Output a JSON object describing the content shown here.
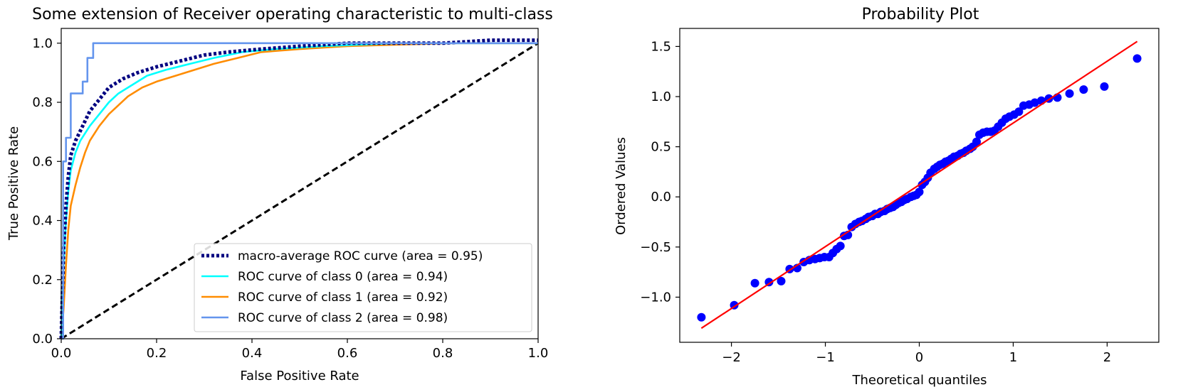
{
  "chart_data": [
    {
      "type": "line",
      "title": "Some extension of Receiver operating characteristic to multi-class",
      "xlabel": "False Positive Rate",
      "ylabel": "True Positive Rate",
      "xlim": [
        0.0,
        1.0
      ],
      "ylim": [
        0.0,
        1.05
      ],
      "xticks": [
        "0.0",
        "0.2",
        "0.4",
        "0.6",
        "0.8",
        "1.0"
      ],
      "yticks": [
        "0.0",
        "0.2",
        "0.4",
        "0.6",
        "0.8",
        "1.0"
      ],
      "grid": false,
      "legend_position": "lower-right",
      "series": [
        {
          "name": "macro-average ROC curve (area = 0.95)",
          "color": "#000080",
          "style": "dotted",
          "points": [
            [
              0,
              0
            ],
            [
              0.005,
              0.3
            ],
            [
              0.01,
              0.45
            ],
            [
              0.015,
              0.55
            ],
            [
              0.02,
              0.62
            ],
            [
              0.03,
              0.67
            ],
            [
              0.045,
              0.72
            ],
            [
              0.06,
              0.77
            ],
            [
              0.08,
              0.81
            ],
            [
              0.1,
              0.85
            ],
            [
              0.13,
              0.88
            ],
            [
              0.16,
              0.9
            ],
            [
              0.2,
              0.92
            ],
            [
              0.25,
              0.94
            ],
            [
              0.3,
              0.96
            ],
            [
              0.35,
              0.97
            ],
            [
              0.42,
              0.98
            ],
            [
              0.5,
              0.99
            ],
            [
              0.6,
              1.0
            ],
            [
              0.7,
              1.0
            ],
            [
              0.8,
              1.0
            ],
            [
              0.9,
              1.01
            ],
            [
              1.0,
              1.01
            ]
          ]
        },
        {
          "name": "ROC curve of class 0 (area = 0.94)",
          "color": "#00ffff",
          "style": "solid",
          "points": [
            [
              0,
              0
            ],
            [
              0.005,
              0.25
            ],
            [
              0.01,
              0.4
            ],
            [
              0.015,
              0.5
            ],
            [
              0.02,
              0.57
            ],
            [
              0.03,
              0.63
            ],
            [
              0.04,
              0.67
            ],
            [
              0.06,
              0.72
            ],
            [
              0.08,
              0.76
            ],
            [
              0.1,
              0.8
            ],
            [
              0.12,
              0.83
            ],
            [
              0.15,
              0.86
            ],
            [
              0.18,
              0.89
            ],
            [
              0.22,
              0.91
            ],
            [
              0.27,
              0.93
            ],
            [
              0.32,
              0.95
            ],
            [
              0.38,
              0.97
            ],
            [
              0.45,
              0.98
            ],
            [
              0.55,
              0.99
            ],
            [
              0.7,
              1.0
            ],
            [
              1.0,
              1.0
            ]
          ]
        },
        {
          "name": "ROC curve of class 1 (area = 0.92)",
          "color": "#ff8c00",
          "style": "solid",
          "points": [
            [
              0,
              0
            ],
            [
              0.005,
              0.1
            ],
            [
              0.01,
              0.25
            ],
            [
              0.015,
              0.37
            ],
            [
              0.02,
              0.45
            ],
            [
              0.03,
              0.52
            ],
            [
              0.04,
              0.58
            ],
            [
              0.05,
              0.63
            ],
            [
              0.06,
              0.67
            ],
            [
              0.08,
              0.72
            ],
            [
              0.1,
              0.76
            ],
            [
              0.12,
              0.79
            ],
            [
              0.14,
              0.82
            ],
            [
              0.17,
              0.85
            ],
            [
              0.2,
              0.87
            ],
            [
              0.24,
              0.89
            ],
            [
              0.28,
              0.91
            ],
            [
              0.32,
              0.93
            ],
            [
              0.37,
              0.95
            ],
            [
              0.42,
              0.97
            ],
            [
              0.5,
              0.98
            ],
            [
              0.6,
              0.99
            ],
            [
              0.7,
              0.995
            ],
            [
              0.82,
              1.0
            ],
            [
              1.0,
              1.0
            ]
          ]
        },
        {
          "name": "ROC curve of class 2 (area = 0.98)",
          "color": "#6495ed",
          "style": "solid",
          "points": [
            [
              0,
              0
            ],
            [
              0.004,
              0.0
            ],
            [
              0.004,
              0.6
            ],
            [
              0.01,
              0.6
            ],
            [
              0.01,
              0.68
            ],
            [
              0.02,
              0.68
            ],
            [
              0.02,
              0.83
            ],
            [
              0.045,
              0.83
            ],
            [
              0.045,
              0.87
            ],
            [
              0.055,
              0.87
            ],
            [
              0.055,
              0.95
            ],
            [
              0.067,
              0.95
            ],
            [
              0.067,
              1.0
            ],
            [
              1.0,
              1.0
            ]
          ]
        },
        {
          "name": "",
          "color": "#000000",
          "style": "dashed",
          "points": [
            [
              0,
              0
            ],
            [
              1,
              1
            ]
          ]
        }
      ]
    },
    {
      "type": "scatter",
      "title": "Probability Plot",
      "xlabel": "Theoretical quantiles",
      "ylabel": "Ordered Values",
      "xlim": [
        -2.55,
        2.55
      ],
      "ylim": [
        -1.45,
        1.68
      ],
      "xticks": [
        "−2",
        "−1",
        "0",
        "1",
        "2"
      ],
      "yticks": [
        "−1.0",
        "−0.5",
        "0.0",
        "0.5",
        "1.0",
        "1.5"
      ],
      "grid": false,
      "point_color": "#0000ff",
      "fit_line_color": "#ff0000",
      "fit_line": [
        [
          -2.32,
          -1.31
        ],
        [
          2.32,
          1.55
        ]
      ],
      "points": [
        [
          -2.32,
          -1.2
        ],
        [
          -1.97,
          -1.08
        ],
        [
          -1.75,
          -0.86
        ],
        [
          -1.6,
          -0.85
        ],
        [
          -1.47,
          -0.84
        ],
        [
          -1.38,
          -0.72
        ],
        [
          -1.3,
          -0.71
        ],
        [
          -1.23,
          -0.65
        ],
        [
          -1.17,
          -0.63
        ],
        [
          -1.11,
          -0.62
        ],
        [
          -1.06,
          -0.61
        ],
        [
          -1.01,
          -0.6
        ],
        [
          -0.96,
          -0.6
        ],
        [
          -0.92,
          -0.56
        ],
        [
          -0.88,
          -0.52
        ],
        [
          -0.84,
          -0.49
        ],
        [
          -0.8,
          -0.39
        ],
        [
          -0.76,
          -0.38
        ],
        [
          -0.72,
          -0.3
        ],
        [
          -0.68,
          -0.27
        ],
        [
          -0.64,
          -0.25
        ],
        [
          -0.61,
          -0.24
        ],
        [
          -0.57,
          -0.22
        ],
        [
          -0.54,
          -0.2
        ],
        [
          -0.5,
          -0.19
        ],
        [
          -0.47,
          -0.17
        ],
        [
          -0.44,
          -0.17
        ],
        [
          -0.41,
          -0.15
        ],
        [
          -0.37,
          -0.14
        ],
        [
          -0.34,
          -0.12
        ],
        [
          -0.31,
          -0.11
        ],
        [
          -0.28,
          -0.1
        ],
        [
          -0.25,
          -0.08
        ],
        [
          -0.22,
          -0.06
        ],
        [
          -0.19,
          -0.05
        ],
        [
          -0.16,
          -0.03
        ],
        [
          -0.13,
          -0.02
        ],
        [
          -0.09,
          0.0
        ],
        [
          -0.06,
          0.01
        ],
        [
          -0.03,
          0.02
        ],
        [
          0.0,
          0.05
        ],
        [
          0.03,
          0.12
        ],
        [
          0.06,
          0.15
        ],
        [
          0.09,
          0.19
        ],
        [
          0.12,
          0.24
        ],
        [
          0.16,
          0.28
        ],
        [
          0.19,
          0.3
        ],
        [
          0.22,
          0.32
        ],
        [
          0.25,
          0.33
        ],
        [
          0.28,
          0.35
        ],
        [
          0.31,
          0.36
        ],
        [
          0.34,
          0.38
        ],
        [
          0.37,
          0.4
        ],
        [
          0.41,
          0.41
        ],
        [
          0.44,
          0.43
        ],
        [
          0.47,
          0.44
        ],
        [
          0.5,
          0.46
        ],
        [
          0.54,
          0.48
        ],
        [
          0.57,
          0.5
        ],
        [
          0.61,
          0.55
        ],
        [
          0.64,
          0.62
        ],
        [
          0.68,
          0.64
        ],
        [
          0.72,
          0.65
        ],
        [
          0.76,
          0.65
        ],
        [
          0.8,
          0.66
        ],
        [
          0.84,
          0.7
        ],
        [
          0.88,
          0.74
        ],
        [
          0.92,
          0.78
        ],
        [
          0.96,
          0.8
        ],
        [
          1.01,
          0.82
        ],
        [
          1.06,
          0.85
        ],
        [
          1.11,
          0.91
        ],
        [
          1.17,
          0.92
        ],
        [
          1.23,
          0.94
        ],
        [
          1.3,
          0.96
        ],
        [
          1.38,
          0.98
        ],
        [
          1.47,
          0.99
        ],
        [
          1.6,
          1.03
        ],
        [
          1.75,
          1.07
        ],
        [
          1.97,
          1.1
        ],
        [
          2.32,
          1.38
        ]
      ]
    }
  ]
}
